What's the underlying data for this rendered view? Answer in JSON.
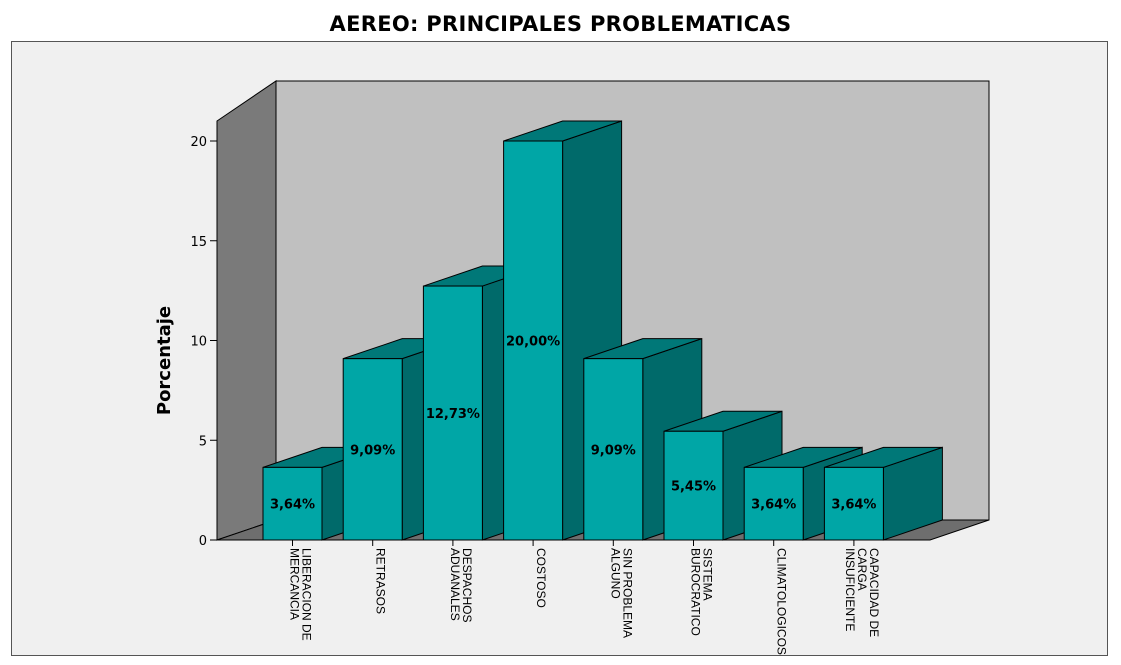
{
  "chart_data": {
    "type": "bar",
    "title": "AEREO: PRINCIPALES PROBLEMATICAS",
    "xlabel": "",
    "ylabel": "Porcentaje",
    "ylim": [
      0,
      20
    ],
    "yticks": [
      0,
      5,
      10,
      15,
      20
    ],
    "categories": [
      [
        "LIBERACION DE",
        "MERCANCIA"
      ],
      [
        "RETRASOS"
      ],
      [
        "DESPACHOS",
        "ADUANALES"
      ],
      [
        "COSTOSO"
      ],
      [
        "SIN PROBLEMA",
        "ALGUNO"
      ],
      [
        "SISTEMA",
        "BUROCRATICO"
      ],
      [
        "CLIMATOLOGICOS"
      ],
      [
        "CAPACIDAD DE",
        "CARGA",
        "INSUFICIENTE"
      ]
    ],
    "values": [
      3.64,
      9.09,
      12.73,
      20.0,
      9.09,
      5.45,
      3.64,
      3.64
    ],
    "data_labels": [
      "3,64%",
      "9,09%",
      "12,73%",
      "20,00%",
      "9,09%",
      "5,45%",
      "3,64%",
      "3,64%"
    ],
    "colors": {
      "bar_front": "#00a6a6",
      "bar_side": "#006a6a",
      "bar_top": "#007878",
      "back_wall": "#c0c0c0",
      "left_wall": "#7a7a7a",
      "floor": "#6e6e6e",
      "frame": "#f0f0f0"
    }
  }
}
